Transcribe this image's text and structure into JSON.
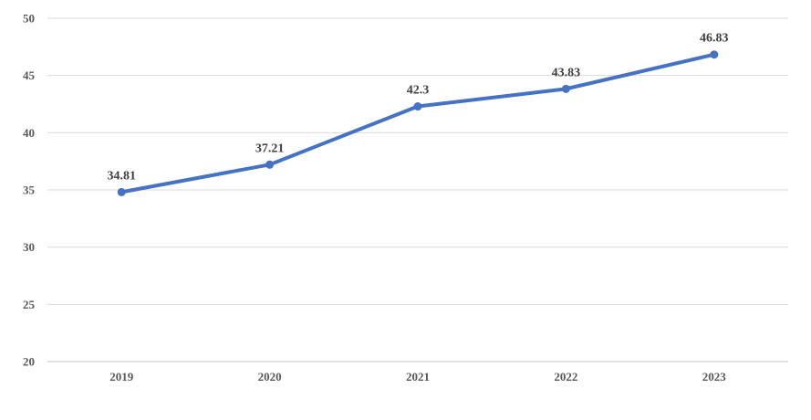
{
  "chart_data": {
    "type": "line",
    "title": "",
    "xlabel": "",
    "ylabel": "",
    "categories": [
      "2019",
      "2020",
      "2021",
      "2022",
      "2023"
    ],
    "series": [
      {
        "values": [
          34.81,
          37.21,
          42.3,
          43.83,
          46.83
        ],
        "color": "#4472c4"
      }
    ],
    "data_labels": [
      "34.81",
      "37.21",
      "42.3",
      "43.83",
      "46.83"
    ],
    "ylim": [
      20,
      50
    ],
    "yticks": [
      20,
      25,
      30,
      35,
      40,
      45,
      50
    ],
    "ytick_labels": [
      "20",
      "25",
      "30",
      "35",
      "40",
      "45",
      "50"
    ],
    "grid": true,
    "legend": "none",
    "colors": {
      "line": "#4472c4",
      "grid": "#d9d9d9",
      "axis": "#bfbfbf"
    }
  }
}
